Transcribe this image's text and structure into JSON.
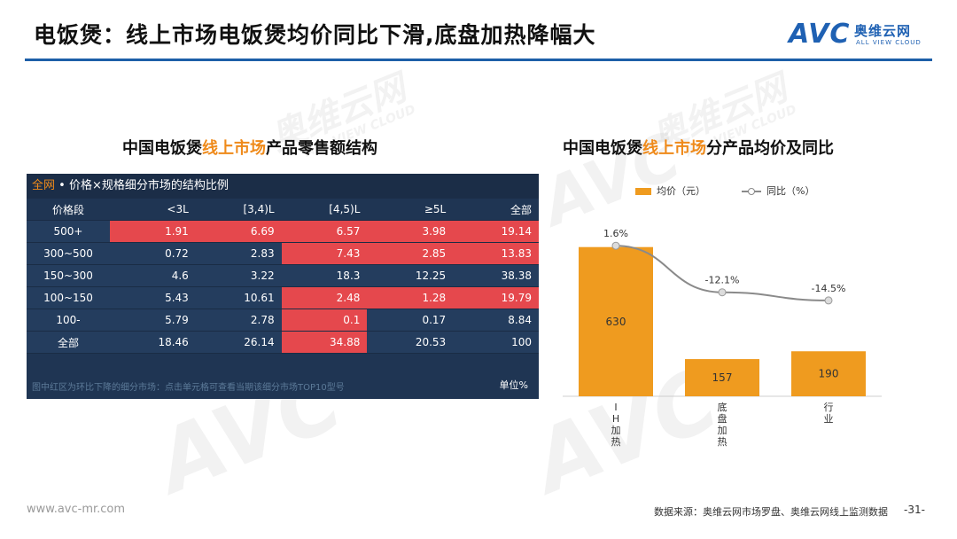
{
  "header": {
    "title": "电饭煲：线上市场电饭煲均价同比下滑,底盘加热降幅大",
    "logo_avc": "AVC",
    "logo_cn": "奥维云网",
    "logo_en": "ALL VIEW CLOUD"
  },
  "watermark": {
    "avc": "AVC",
    "cn": "奥维云网",
    "en": "ALL VIEW CLOUD"
  },
  "left": {
    "title_prefix": "中国电饭煲",
    "title_highlight": "线上市场",
    "title_suffix": "产品零售额结构",
    "table_header_orange": "全网",
    "table_header_text": "• 价格×规格细分市场的结构比例",
    "note": "图中红区为环比下降的细分市场：点击单元格可查看当期该细分市场TOP10型号",
    "unit": "单位%"
  },
  "right": {
    "title_prefix": "中国电饭煲",
    "title_highlight": "线上市场",
    "title_suffix": "分产品均价及同比",
    "legend_bar": "均价（元）",
    "legend_line": "同比（%）"
  },
  "chart_data": [
    {
      "type": "table",
      "columns": [
        "价格段",
        "<3L",
        "[3,4)L",
        "[4,5)L",
        "≥5L",
        "全部"
      ],
      "rows": [
        {
          "label": "500+",
          "values": [
            "1.91",
            "6.69",
            "6.57",
            "3.98",
            "19.14"
          ],
          "hot": [
            true,
            true,
            true,
            true,
            true
          ]
        },
        {
          "label": "300~500",
          "values": [
            "0.72",
            "2.83",
            "7.43",
            "2.85",
            "13.83"
          ],
          "hot": [
            false,
            false,
            true,
            true,
            true
          ]
        },
        {
          "label": "150~300",
          "values": [
            "4.6",
            "3.22",
            "18.3",
            "12.25",
            "38.38"
          ],
          "hot": [
            false,
            false,
            false,
            false,
            false
          ]
        },
        {
          "label": "100~150",
          "values": [
            "5.43",
            "10.61",
            "2.48",
            "1.28",
            "19.79"
          ],
          "hot": [
            false,
            false,
            true,
            true,
            true
          ]
        },
        {
          "label": "100-",
          "values": [
            "5.79",
            "2.78",
            "0.1",
            "0.17",
            "8.84"
          ],
          "hot": [
            false,
            false,
            true,
            false,
            false
          ]
        },
        {
          "label": "全部",
          "values": [
            "18.46",
            "26.14",
            "34.88",
            "20.53",
            "100"
          ],
          "hot": [
            false,
            false,
            true,
            false,
            false
          ]
        }
      ]
    },
    {
      "type": "bar",
      "categories": [
        "IH加热",
        "底盘加热",
        "行业"
      ],
      "category_labels_vertical": [
        [
          "I",
          "H",
          "加",
          "热"
        ],
        [
          "底",
          "盘",
          "加",
          "热"
        ],
        [
          "行",
          "业"
        ]
      ],
      "series": [
        {
          "name": "均价（元）",
          "type": "bar",
          "values": [
            630,
            157,
            190
          ],
          "color": "#ef9b1f"
        },
        {
          "name": "同比（%）",
          "type": "line",
          "values": [
            1.6,
            -12.1,
            -14.5
          ],
          "labels": [
            "1.6%",
            "-12.1%",
            "-14.5%"
          ],
          "color": "#8a8a8a"
        }
      ],
      "legend": "top-center"
    }
  ],
  "footer": {
    "url": "www.avc-mr.com",
    "source": "数据来源：奥维云网市场罗盘、奥维云网线上监测数据",
    "page": "-31-"
  }
}
